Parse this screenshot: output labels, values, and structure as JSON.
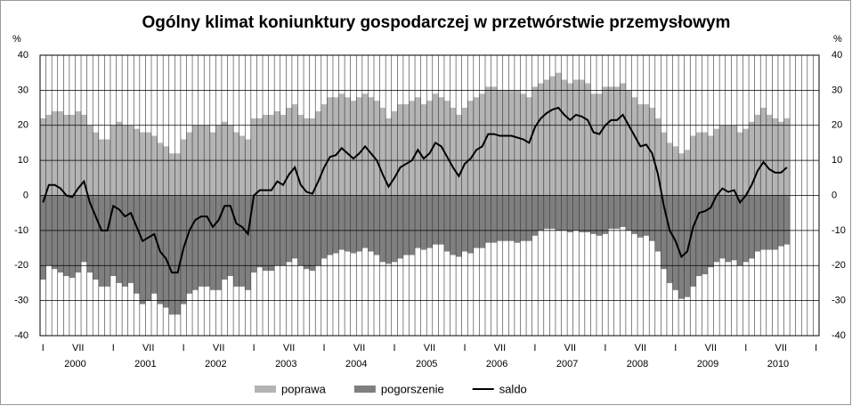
{
  "chart_data": {
    "type": "bar",
    "title": "Ogólny klimat koniunktury gospodarczej w przetwórstwie przemysłowym",
    "y_unit": "%",
    "ylim": [
      -40,
      40
    ],
    "yticks": [
      -40,
      -30,
      -20,
      -10,
      0,
      10,
      20,
      30,
      40
    ],
    "grid": true,
    "stacked": true,
    "years": [
      "2000",
      "2001",
      "2002",
      "2003",
      "2004",
      "2005",
      "2006",
      "2007",
      "2008",
      "2009",
      "2010"
    ],
    "categories": [
      "I",
      null,
      null,
      null,
      null,
      null,
      "VII",
      null,
      null,
      null,
      null,
      null,
      "I",
      null,
      null,
      null,
      null,
      null,
      "VII",
      null,
      null,
      null,
      null,
      null,
      "I",
      null,
      null,
      null,
      null,
      null,
      "VII",
      null,
      null,
      null,
      null,
      null,
      "I",
      null,
      null,
      null,
      null,
      null,
      "VII",
      null,
      null,
      null,
      null,
      null,
      "I",
      null,
      null,
      null,
      null,
      null,
      "VII",
      null,
      null,
      null,
      null,
      null,
      "I",
      null,
      null,
      null,
      null,
      null,
      "VII",
      null,
      null,
      null,
      null,
      null,
      "I",
      null,
      null,
      null,
      null,
      null,
      "VII",
      null,
      null,
      null,
      null,
      null,
      "I",
      null,
      null,
      null,
      null,
      null,
      "VII",
      null,
      null,
      null,
      null,
      null,
      "I",
      null,
      null,
      null,
      null,
      null,
      "VII",
      null,
      null,
      null,
      null,
      null,
      "I",
      null,
      null,
      null,
      null,
      null,
      "VII",
      null,
      null,
      null,
      null,
      null,
      "I",
      null,
      null,
      null,
      null,
      null,
      "VII",
      null,
      null,
      null,
      null,
      null,
      "I"
    ],
    "series": [
      {
        "name": "poprawa",
        "color": "#b4b4b4",
        "kind": "bar",
        "values": [
          22,
          23,
          24,
          24,
          23,
          23,
          24,
          23,
          20,
          18,
          16,
          16,
          20,
          21,
          20,
          20,
          19,
          18,
          18,
          17,
          15,
          14,
          12,
          12,
          16,
          18,
          20,
          20,
          20,
          18,
          20,
          21,
          20,
          18,
          17,
          16,
          22,
          22,
          23,
          23,
          24,
          23,
          25,
          26,
          23,
          22,
          22,
          24,
          26,
          28,
          28,
          29,
          28,
          27,
          28,
          29,
          28,
          27,
          25,
          22,
          24,
          26,
          26,
          27,
          28,
          26,
          27,
          29,
          28,
          27,
          25,
          23,
          25,
          27,
          28,
          29,
          31,
          31,
          30,
          30,
          30,
          30,
          29,
          28,
          31,
          32,
          33,
          34,
          35,
          33,
          32,
          33,
          33,
          32,
          29,
          29,
          31,
          31,
          31,
          32,
          30,
          28,
          26,
          26,
          25,
          22,
          18,
          15,
          14,
          12,
          13,
          17,
          18,
          18,
          17,
          19,
          20,
          20,
          20,
          18,
          19,
          21,
          23,
          25,
          23,
          22,
          21,
          22,
          null,
          null,
          null,
          null,
          null
        ]
      },
      {
        "name": "pogorszenie",
        "color": "#7f7f7f",
        "kind": "bar",
        "values": [
          -24,
          -20,
          -21,
          -22,
          -23,
          -23.5,
          -22,
          -19,
          -22,
          -24,
          -26,
          -26,
          -23,
          -25,
          -26,
          -25,
          -28,
          -31,
          -30,
          -28,
          -31,
          -32,
          -34,
          -34,
          -31,
          -28,
          -27,
          -26,
          -26,
          -27,
          -27,
          -24,
          -23,
          -26,
          -26,
          -27,
          -22,
          -20.5,
          -21.5,
          -21.5,
          -20,
          -20,
          -19,
          -18,
          -20,
          -21,
          -21.5,
          -20,
          -18,
          -17,
          -16.5,
          -15.5,
          -16,
          -16.5,
          -16,
          -15,
          -16,
          -17,
          -19,
          -19.5,
          -19,
          -18,
          -17,
          -17,
          -15,
          -15.5,
          -15,
          -14,
          -14,
          -16,
          -17,
          -17.5,
          -16,
          -16.5,
          -15,
          -15,
          -13.5,
          -13.5,
          -13,
          -13,
          -13,
          -13.5,
          -13,
          -13,
          -11.5,
          -10,
          -9.5,
          -9.5,
          -10,
          -10,
          -10.5,
          -10,
          -10.5,
          -10.5,
          -11,
          -11.5,
          -11,
          -9.5,
          -9.5,
          -9,
          -10,
          -11,
          -12,
          -11.5,
          -13,
          -16,
          -21,
          -25,
          -27,
          -29.5,
          -29,
          -26,
          -23,
          -22.5,
          -20.5,
          -19,
          -18,
          -19,
          -18.5,
          -20,
          -19,
          -18,
          -16,
          -15.5,
          -15.5,
          -15.5,
          -14.5,
          -14,
          null,
          null,
          null,
          null,
          null
        ]
      },
      {
        "name": "saldo",
        "color": "#000000",
        "kind": "line",
        "values": [
          -2,
          3,
          3,
          2,
          0,
          -0.5,
          2,
          4,
          -2,
          -6,
          -10,
          -10,
          -3,
          -4,
          -6,
          -5,
          -9,
          -13,
          -12,
          -11,
          -16,
          -18,
          -22,
          -22,
          -15,
          -10,
          -7,
          -6,
          -6,
          -9,
          -7,
          -3,
          -3,
          -8,
          -9,
          -11,
          0,
          1.5,
          1.5,
          1.5,
          4,
          3,
          6,
          8,
          3,
          1,
          0.5,
          4,
          8,
          11,
          11.5,
          13.5,
          12,
          10.5,
          12,
          14,
          12,
          10,
          6,
          2.5,
          5,
          8,
          9,
          10,
          13,
          10.5,
          12,
          15,
          14,
          11,
          8,
          5.5,
          9,
          10.5,
          13,
          14,
          17.5,
          17.5,
          17,
          17,
          17,
          16.5,
          16,
          15,
          19.5,
          22,
          23.5,
          24.5,
          25,
          23,
          21.5,
          23,
          22.5,
          21.5,
          18,
          17.5,
          20,
          21.5,
          21.5,
          23,
          20,
          17,
          14,
          14.5,
          12,
          6,
          -3,
          -10,
          -13,
          -17.5,
          -16,
          -9,
          -5,
          -4.5,
          -3.5,
          0,
          2,
          1,
          1.5,
          -2,
          0,
          3,
          7,
          9.5,
          7.5,
          6.5,
          6.5,
          8,
          null,
          null,
          null,
          null,
          null
        ]
      }
    ]
  }
}
